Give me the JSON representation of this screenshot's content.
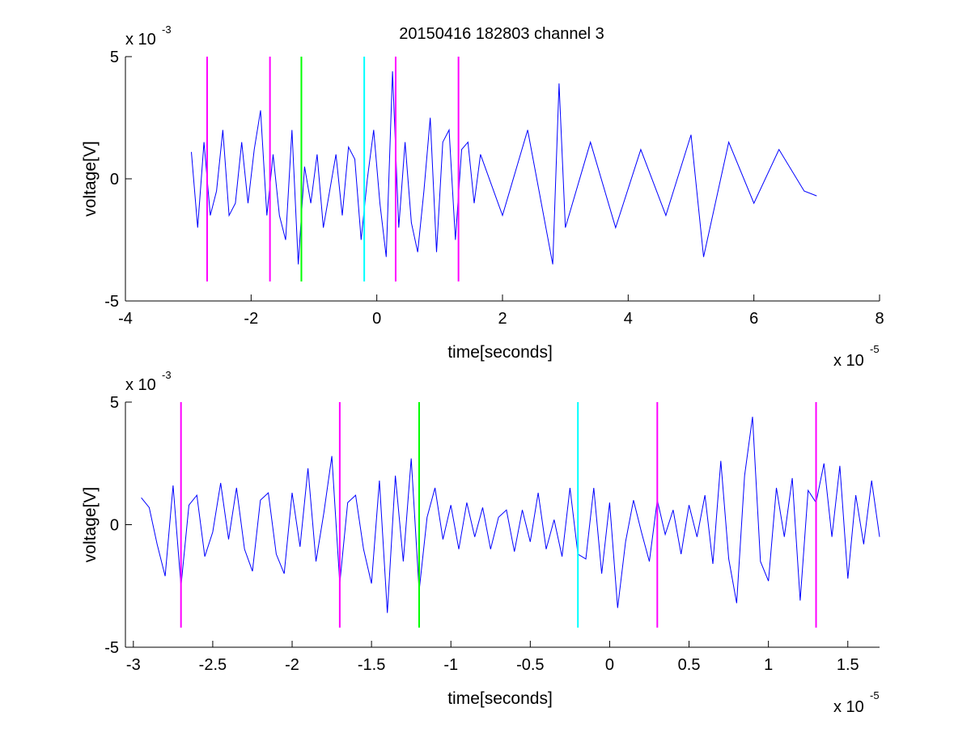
{
  "figure": {
    "title": "20150416 182803 channel 3"
  },
  "chart_data": [
    {
      "type": "line",
      "title": "20150416 182803 channel 3",
      "xlabel": "time[seconds]",
      "ylabel": "voltage[V]",
      "x_multiplier": "x 10",
      "x_exponent": "-5",
      "y_multiplier": "x 10",
      "y_exponent": "-3",
      "xlim": [
        -4,
        8
      ],
      "ylim": [
        -5,
        5
      ],
      "xticks": [
        -4,
        -2,
        0,
        2,
        4,
        6,
        8
      ],
      "xtick_labels": [
        "-4",
        "-2",
        "0",
        "2",
        "4",
        "6",
        "8"
      ],
      "yticks": [
        -5,
        0,
        5
      ],
      "ytick_labels": [
        "-5",
        "0",
        "5"
      ],
      "grid": false,
      "series": [
        {
          "color": "#0000ff",
          "x": [
            -2.95,
            -2.85,
            -2.75,
            -2.65,
            -2.55,
            -2.45,
            -2.35,
            -2.25,
            -2.15,
            -2.05,
            -1.95,
            -1.85,
            -1.75,
            -1.65,
            -1.55,
            -1.45,
            -1.35,
            -1.25,
            -1.15,
            -1.05,
            -0.95,
            -0.85,
            -0.75,
            -0.65,
            -0.55,
            -0.45,
            -0.35,
            -0.25,
            -0.15,
            -0.05,
            0.05,
            0.15,
            0.25,
            0.35,
            0.45,
            0.55,
            0.65,
            0.75,
            0.85,
            0.95,
            1.05,
            1.15,
            1.25,
            1.35,
            1.45,
            1.55,
            1.65,
            2.0,
            2.4,
            2.8,
            2.9,
            3.0,
            3.4,
            3.8,
            4.2,
            4.6,
            5.0,
            5.2,
            5.6,
            6.0,
            6.4,
            6.8,
            7.0
          ],
          "y": [
            1.1,
            -2.0,
            1.5,
            -1.5,
            -0.5,
            2.0,
            -1.5,
            -1.0,
            1.5,
            -1.0,
            1.2,
            2.8,
            -1.5,
            1.0,
            -1.5,
            -2.5,
            2.0,
            -3.5,
            0.5,
            -1.0,
            1.0,
            -2.0,
            -0.5,
            1.0,
            -1.5,
            1.3,
            0.8,
            -2.5,
            0.0,
            2.0,
            -1.0,
            -3.2,
            4.4,
            -2.0,
            1.5,
            -1.8,
            -3.0,
            -0.5,
            2.5,
            -3.0,
            1.5,
            2.0,
            -2.5,
            1.2,
            1.5,
            -1.0,
            1.0,
            -1.5,
            2.0,
            -3.5,
            3.9,
            -2.0,
            1.5,
            -2.0,
            1.2,
            -1.5,
            1.8,
            -3.2,
            1.5,
            -1.0,
            1.2,
            -0.5,
            -0.7
          ]
        }
      ],
      "vlines": [
        {
          "x": -2.7,
          "color": "#ff00ff"
        },
        {
          "x": -1.7,
          "color": "#ff00ff"
        },
        {
          "x": -1.2,
          "color": "#00ff00"
        },
        {
          "x": -0.2,
          "color": "#00ffff"
        },
        {
          "x": 0.3,
          "color": "#ff00ff"
        },
        {
          "x": 1.3,
          "color": "#ff00ff"
        }
      ],
      "vline_range": [
        -4.2,
        5.0
      ]
    },
    {
      "type": "line",
      "title": "",
      "xlabel": "time[seconds]",
      "ylabel": "voltage[V]",
      "x_multiplier": "x 10",
      "x_exponent": "-5",
      "y_multiplier": "x 10",
      "y_exponent": "-3",
      "xlim": [
        -3.05,
        1.7
      ],
      "ylim": [
        -5,
        5
      ],
      "xticks": [
        -3,
        -2.5,
        -2,
        -1.5,
        -1,
        -0.5,
        0,
        0.5,
        1,
        1.5
      ],
      "xtick_labels": [
        "-3",
        "-2.5",
        "-2",
        "-1.5",
        "-1",
        "-0.5",
        "0",
        "0.5",
        "1",
        "1.5"
      ],
      "yticks": [
        -5,
        0,
        5
      ],
      "ytick_labels": [
        "-5",
        "0",
        "5"
      ],
      "grid": false,
      "series": [
        {
          "color": "#0000ff",
          "x": [
            -2.95,
            -2.9,
            -2.85,
            -2.8,
            -2.75,
            -2.7,
            -2.65,
            -2.6,
            -2.55,
            -2.5,
            -2.45,
            -2.4,
            -2.35,
            -2.3,
            -2.25,
            -2.2,
            -2.15,
            -2.1,
            -2.05,
            -2.0,
            -1.95,
            -1.9,
            -1.85,
            -1.8,
            -1.75,
            -1.7,
            -1.65,
            -1.6,
            -1.55,
            -1.5,
            -1.45,
            -1.4,
            -1.35,
            -1.3,
            -1.25,
            -1.2,
            -1.15,
            -1.1,
            -1.05,
            -1.0,
            -0.95,
            -0.9,
            -0.85,
            -0.8,
            -0.75,
            -0.7,
            -0.65,
            -0.6,
            -0.55,
            -0.5,
            -0.45,
            -0.4,
            -0.35,
            -0.3,
            -0.25,
            -0.2,
            -0.15,
            -0.1,
            -0.05,
            0.0,
            0.05,
            0.1,
            0.15,
            0.2,
            0.25,
            0.3,
            0.35,
            0.4,
            0.45,
            0.5,
            0.55,
            0.6,
            0.65,
            0.7,
            0.75,
            0.8,
            0.85,
            0.9,
            0.95,
            1.0,
            1.05,
            1.1,
            1.15,
            1.2,
            1.25,
            1.3,
            1.35,
            1.4,
            1.45,
            1.5,
            1.55,
            1.6,
            1.65,
            1.7
          ],
          "y": [
            1.1,
            0.7,
            -0.8,
            -2.1,
            1.6,
            -2.5,
            0.8,
            1.2,
            -1.3,
            -0.3,
            1.7,
            -0.6,
            1.5,
            -1.0,
            -1.9,
            1.0,
            1.3,
            -1.2,
            -2.0,
            1.3,
            -0.9,
            2.3,
            -1.5,
            0.5,
            2.8,
            -2.4,
            0.9,
            1.2,
            -1.0,
            -2.4,
            1.8,
            -3.6,
            2.0,
            -1.5,
            2.7,
            -2.7,
            0.3,
            1.5,
            -0.6,
            0.8,
            -1.0,
            0.9,
            -0.5,
            0.7,
            -1.0,
            0.3,
            0.6,
            -1.1,
            0.6,
            -0.7,
            1.3,
            -1.0,
            0.2,
            -1.3,
            1.5,
            -1.2,
            -1.4,
            1.5,
            -2.0,
            0.9,
            -3.4,
            -0.7,
            1.0,
            -0.3,
            -1.5,
            1.0,
            -0.4,
            0.6,
            -1.2,
            0.8,
            -0.5,
            1.2,
            -1.6,
            2.6,
            -1.4,
            -3.2,
            2.0,
            4.4,
            -1.5,
            -2.3,
            1.5,
            -0.5,
            1.9,
            -3.1,
            1.4,
            0.9,
            2.5,
            -0.5,
            2.4,
            -2.2,
            1.2,
            -0.8,
            1.8,
            -0.5
          ]
        }
      ],
      "vlines": [
        {
          "x": -2.7,
          "color": "#ff00ff"
        },
        {
          "x": -1.7,
          "color": "#ff00ff"
        },
        {
          "x": -1.2,
          "color": "#00ff00"
        },
        {
          "x": -0.2,
          "color": "#00ffff"
        },
        {
          "x": 0.3,
          "color": "#ff00ff"
        },
        {
          "x": 1.3,
          "color": "#ff00ff"
        }
      ],
      "vline_range": [
        -4.2,
        5.0
      ]
    }
  ]
}
